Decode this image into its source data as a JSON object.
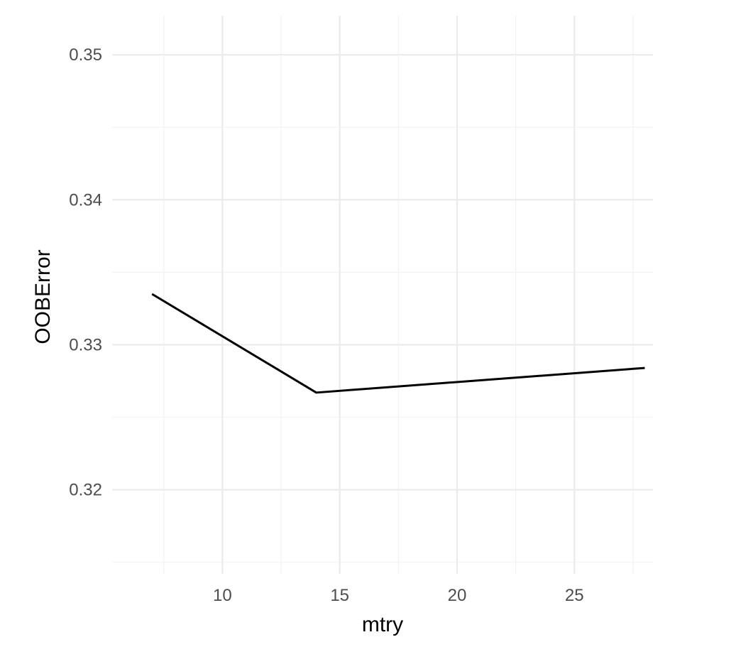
{
  "chart_data": {
    "type": "line",
    "title": "",
    "xlabel": "mtry",
    "ylabel": "OOBError",
    "x": [
      7,
      14,
      28
    ],
    "series": [
      {
        "values": [
          0.3335,
          0.3267,
          0.3284
        ],
        "color": "#000000"
      }
    ],
    "xlim": [
      5.3,
      28.35
    ],
    "ylim": [
      0.3142,
      0.3527
    ],
    "x_major_ticks": [
      10,
      15,
      20,
      25
    ],
    "x_minor_ticks": [
      7.5,
      12.5,
      17.5,
      22.5,
      27.5
    ],
    "y_major_ticks": [
      0.32,
      0.33,
      0.34,
      0.35
    ],
    "y_minor_ticks": [
      0.315,
      0.325,
      0.335,
      0.345
    ],
    "x_tick_labels": [
      "10",
      "15",
      "20",
      "25"
    ],
    "y_tick_labels": [
      "0.32",
      "0.33",
      "0.34",
      "0.35"
    ],
    "grid": true,
    "legend": "none",
    "background": "#ffffff",
    "grid_color": "#ebebeb"
  }
}
